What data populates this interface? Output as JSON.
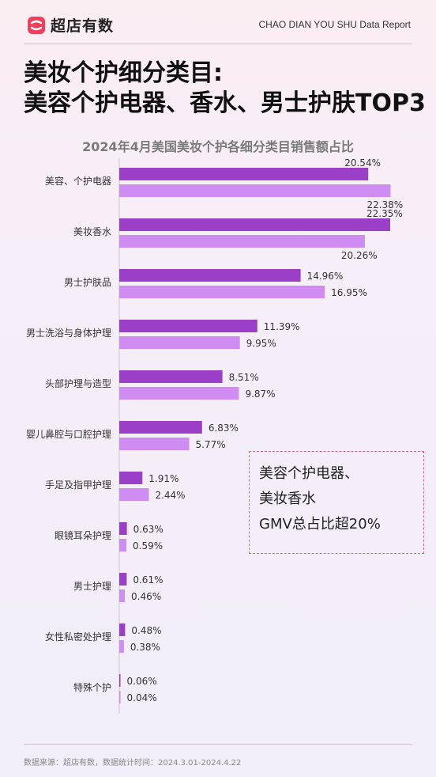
{
  "brand": {
    "name": "超店有数",
    "logo_icon": "brand-logo-icon"
  },
  "report_label": "CHAO DIAN YOU SHU Data Report",
  "headline": {
    "line1": "美妆个护细分类目:",
    "line2": "美容个护电器、香水、男士护肤TOP3"
  },
  "callout": {
    "line1": "美容个护电器、",
    "line2": "美妆香水",
    "line3": "GMV总占比超20%"
  },
  "footer": {
    "source": "数据来源：超店有数，数据统计时间：2024.3.01-2024.4.22"
  },
  "colors": {
    "series_dark": "#9b3fc8",
    "series_light": "#cf8cf3",
    "callout_border": "#d66a8e"
  },
  "chart_data": {
    "type": "bar",
    "orientation": "horizontal",
    "title": "2024年4月美国美妆个护各细分类目销售额占比",
    "categories": [
      "美容、个护电器",
      "美妆香水",
      "男士护肤品",
      "男士洗浴与身体护理",
      "头部护理与造型",
      "婴儿鼻腔与口腔护理",
      "手足及指甲护理",
      "眼镜耳朵护理",
      "男士护理",
      "女性私密处护理",
      "特殊个护"
    ],
    "series": [
      {
        "values": [
          20.54,
          22.35,
          14.96,
          11.39,
          8.51,
          6.83,
          1.91,
          0.63,
          0.61,
          0.48,
          0.06
        ]
      },
      {
        "values": [
          22.38,
          20.26,
          16.95,
          9.95,
          9.87,
          5.77,
          2.44,
          0.59,
          0.46,
          0.38,
          0.04
        ]
      }
    ],
    "value_format": "percent",
    "grid": false,
    "legend": "none"
  }
}
